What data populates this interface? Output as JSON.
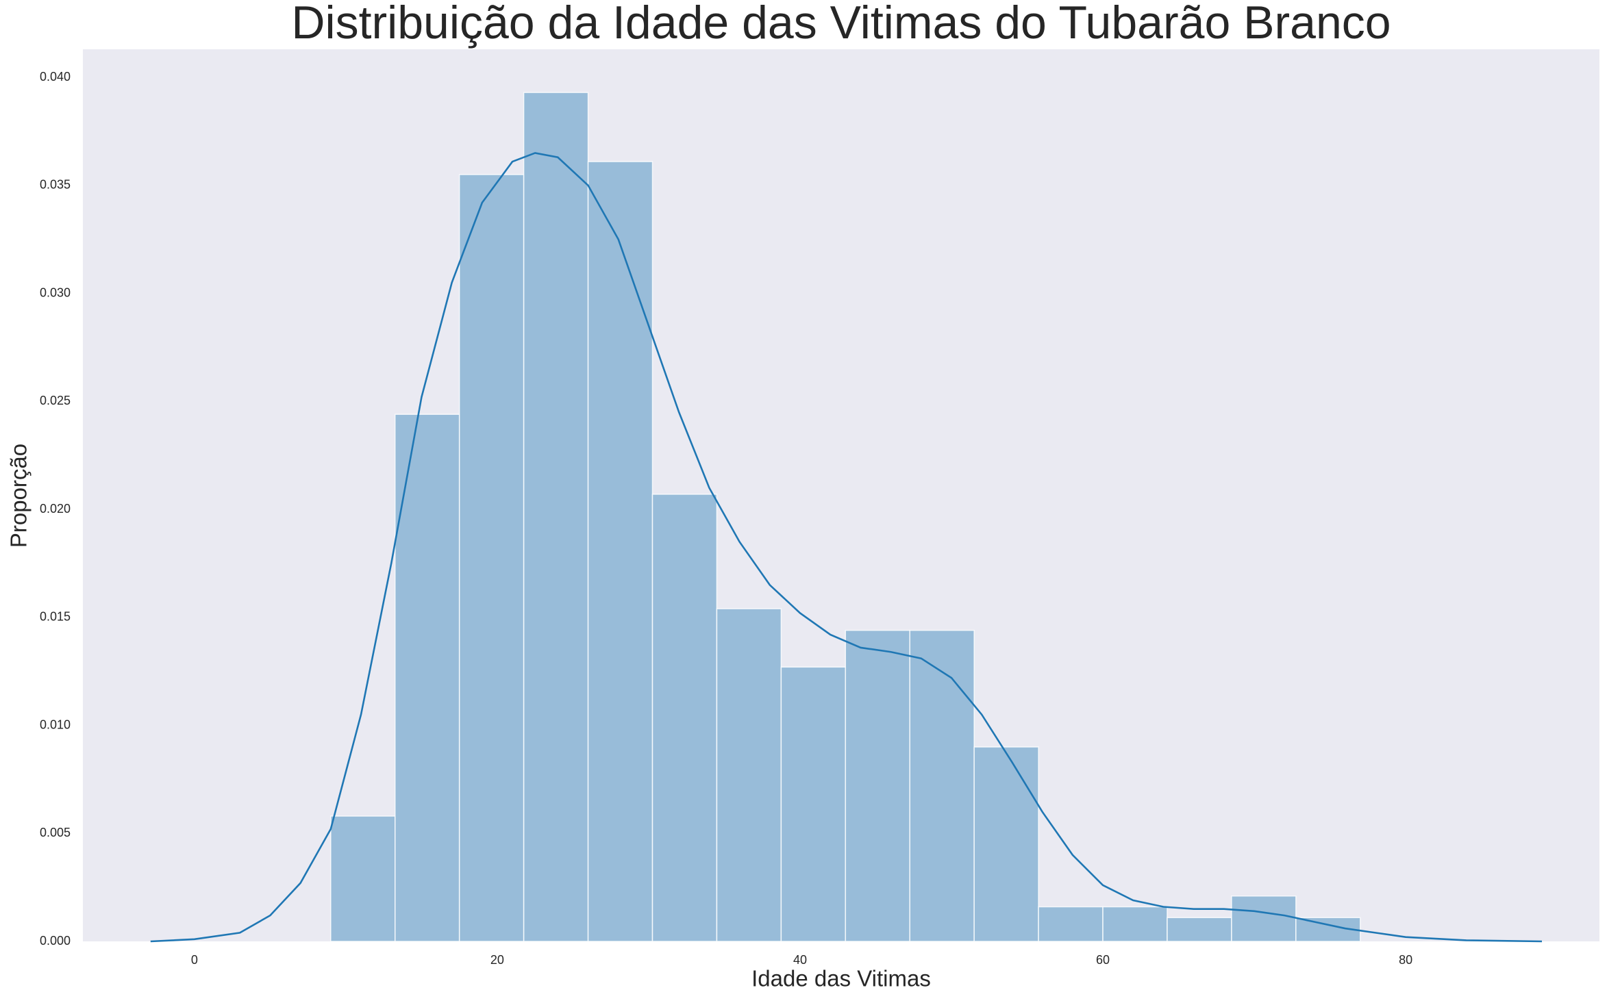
{
  "chart_data": {
    "type": "histogram",
    "title": "Distribuição da Idade das Vitimas do Tubarão Branco",
    "x_label": "Idade das Vitimas",
    "y_label": "Proporção",
    "bins": [
      9,
      13.25,
      17.5,
      21.75,
      26,
      30.25,
      34.5,
      38.75,
      43,
      47.25,
      51.5,
      55.75,
      60,
      64.25,
      68.5,
      72.75,
      77
    ],
    "values": [
      0.0058,
      0.0244,
      0.0355,
      0.0393,
      0.0361,
      0.0207,
      0.0154,
      0.0127,
      0.0144,
      0.0144,
      0.009,
      0.0016,
      0.0016,
      0.0011,
      0.0021,
      0.0011
    ],
    "color": "#1f77b4",
    "bar_alpha": 0.4,
    "kde": {
      "color": "#1f77b4",
      "x": [
        -2.9,
        0,
        3,
        5,
        7,
        9,
        11,
        13,
        15,
        17,
        19,
        21,
        22.5,
        24,
        26,
        28,
        30,
        32,
        34,
        36,
        38,
        40,
        42,
        44,
        46,
        48,
        50,
        52,
        54,
        56,
        58,
        60,
        62,
        64,
        66,
        68,
        70,
        72,
        74,
        76,
        78,
        80,
        84,
        89
      ],
      "values": [
        0,
        0.0001,
        0.0004,
        0.0012,
        0.0027,
        0.0052,
        0.0105,
        0.0175,
        0.0252,
        0.0305,
        0.0342,
        0.0361,
        0.0365,
        0.0363,
        0.035,
        0.0325,
        0.0285,
        0.0245,
        0.021,
        0.0185,
        0.0165,
        0.0152,
        0.0142,
        0.0136,
        0.0134,
        0.0131,
        0.0122,
        0.0105,
        0.0083,
        0.006,
        0.004,
        0.0026,
        0.0019,
        0.0016,
        0.0015,
        0.0015,
        0.0014,
        0.0012,
        0.0009,
        0.0006,
        0.0004,
        0.0002,
        5e-05,
        0
      ]
    },
    "xlim": [
      -7.37,
      92.8
    ],
    "ylim": [
      0,
      0.0413
    ],
    "xticks": [
      0,
      20,
      40,
      60,
      80
    ],
    "yticks": [
      {
        "value": 0,
        "label": "0.000"
      },
      {
        "value": 0.005,
        "label": "0.005"
      },
      {
        "value": 0.01,
        "label": "0.010"
      },
      {
        "value": 0.015,
        "label": "0.015"
      },
      {
        "value": 0.02,
        "label": "0.020"
      },
      {
        "value": 0.025,
        "label": "0.025"
      },
      {
        "value": 0.03,
        "label": "0.030"
      },
      {
        "value": 0.035,
        "label": "0.035"
      },
      {
        "value": 0.04,
        "label": "0.040"
      }
    ],
    "grid": false,
    "background": "#eaeaf2"
  }
}
